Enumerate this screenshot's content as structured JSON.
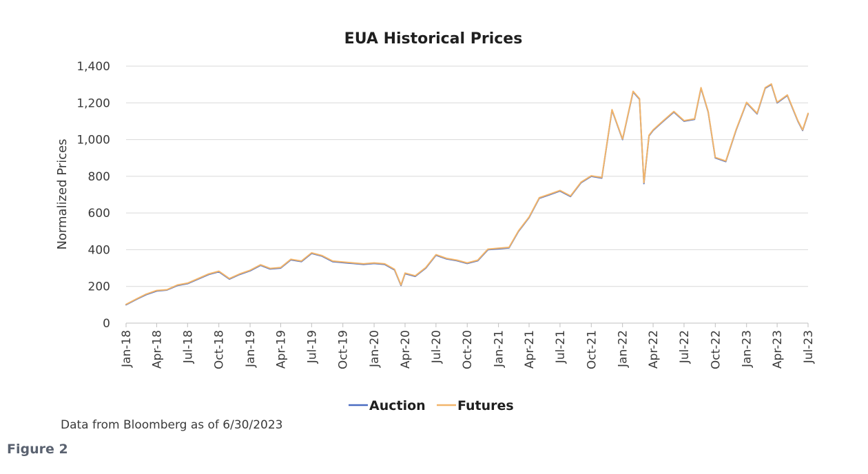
{
  "figure": {
    "label": "Figure 2",
    "source_note": "Data from Bloomberg as of 6/30/2023"
  },
  "chart_data": {
    "type": "line",
    "title": "EUA Historical Prices",
    "xlabel": "",
    "ylabel": "Normalized Prices",
    "ylim": [
      0,
      1400
    ],
    "yticks": [
      0,
      200,
      400,
      600,
      800,
      1000,
      1200,
      1400
    ],
    "ytick_labels": [
      "0",
      "200",
      "400",
      "600",
      "800",
      "1,000",
      "1,200",
      "1,400"
    ],
    "xlim": [
      "2018-01-01",
      "2023-07-01"
    ],
    "xticks": [
      "2018-01-01",
      "2018-04-01",
      "2018-07-01",
      "2018-10-01",
      "2019-01-01",
      "2019-04-01",
      "2019-07-01",
      "2019-10-01",
      "2020-01-01",
      "2020-04-01",
      "2020-07-01",
      "2020-10-01",
      "2021-01-01",
      "2021-04-01",
      "2021-07-01",
      "2021-10-01",
      "2022-01-01",
      "2022-04-01",
      "2022-07-01",
      "2022-10-01",
      "2023-01-01",
      "2023-04-01",
      "2023-07-01"
    ],
    "xtick_labels": [
      "Jan-18",
      "Apr-18",
      "Jul-18",
      "Oct-18",
      "Jan-19",
      "Apr-19",
      "Jul-19",
      "Oct-19",
      "Jan-20",
      "Apr-20",
      "Jul-20",
      "Oct-20",
      "Jan-21",
      "Apr-21",
      "Jul-21",
      "Oct-21",
      "Jan-22",
      "Apr-22",
      "Jul-22",
      "Oct-22",
      "Jan-23",
      "Apr-23",
      "Jul-23"
    ],
    "grid": "horizontal",
    "legend": "bottom-center",
    "colors": {
      "Auction": "#4a6cc2",
      "Futures": "#f2b56b"
    },
    "x": [
      "2018-01-01",
      "2018-02-01",
      "2018-03-01",
      "2018-04-01",
      "2018-05-01",
      "2018-06-01",
      "2018-07-01",
      "2018-08-01",
      "2018-09-01",
      "2018-10-01",
      "2018-11-01",
      "2018-12-01",
      "2019-01-01",
      "2019-02-01",
      "2019-03-01",
      "2019-04-01",
      "2019-05-01",
      "2019-06-01",
      "2019-07-01",
      "2019-08-01",
      "2019-09-01",
      "2019-10-01",
      "2019-11-01",
      "2019-12-01",
      "2020-01-01",
      "2020-02-01",
      "2020-03-01",
      "2020-03-20",
      "2020-04-01",
      "2020-05-01",
      "2020-06-01",
      "2020-07-01",
      "2020-08-01",
      "2020-09-01",
      "2020-10-01",
      "2020-11-01",
      "2020-12-01",
      "2021-01-01",
      "2021-02-01",
      "2021-03-01",
      "2021-04-01",
      "2021-05-01",
      "2021-06-01",
      "2021-07-01",
      "2021-08-01",
      "2021-09-01",
      "2021-10-01",
      "2021-11-01",
      "2021-12-01",
      "2022-01-01",
      "2022-02-01",
      "2022-02-20",
      "2022-03-05",
      "2022-03-20",
      "2022-04-01",
      "2022-05-01",
      "2022-06-01",
      "2022-07-01",
      "2022-08-01",
      "2022-08-20",
      "2022-09-10",
      "2022-10-01",
      "2022-11-01",
      "2022-12-01",
      "2023-01-01",
      "2023-02-01",
      "2023-02-25",
      "2023-03-15",
      "2023-04-01",
      "2023-05-01",
      "2023-06-01",
      "2023-06-15",
      "2023-07-01"
    ],
    "series": [
      {
        "name": "Auction",
        "values": [
          100,
          130,
          155,
          175,
          180,
          205,
          215,
          240,
          265,
          280,
          240,
          265,
          285,
          315,
          295,
          300,
          345,
          335,
          380,
          365,
          335,
          330,
          325,
          320,
          325,
          320,
          290,
          205,
          270,
          255,
          300,
          370,
          350,
          340,
          325,
          340,
          400,
          405,
          410,
          500,
          575,
          680,
          700,
          720,
          690,
          765,
          800,
          790,
          1160,
          1000,
          1260,
          1220,
          760,
          1020,
          1050,
          1100,
          1150,
          1100,
          1110,
          1280,
          1150,
          900,
          880,
          1050,
          1200,
          1140,
          1280,
          1300,
          1200,
          1240,
          1100,
          1050,
          1140
        ]
      },
      {
        "name": "Futures",
        "values": [
          102,
          132,
          158,
          178,
          182,
          208,
          218,
          243,
          268,
          283,
          243,
          268,
          288,
          318,
          298,
          303,
          348,
          338,
          383,
          368,
          338,
          333,
          328,
          323,
          328,
          323,
          293,
          208,
          273,
          258,
          303,
          373,
          353,
          343,
          328,
          343,
          403,
          408,
          413,
          503,
          578,
          683,
          703,
          723,
          693,
          768,
          803,
          793,
          1163,
          1003,
          1263,
          1223,
          765,
          1023,
          1053,
          1103,
          1153,
          1103,
          1113,
          1283,
          1153,
          903,
          883,
          1053,
          1203,
          1143,
          1283,
          1303,
          1203,
          1243,
          1103,
          1053,
          1143
        ]
      }
    ]
  }
}
